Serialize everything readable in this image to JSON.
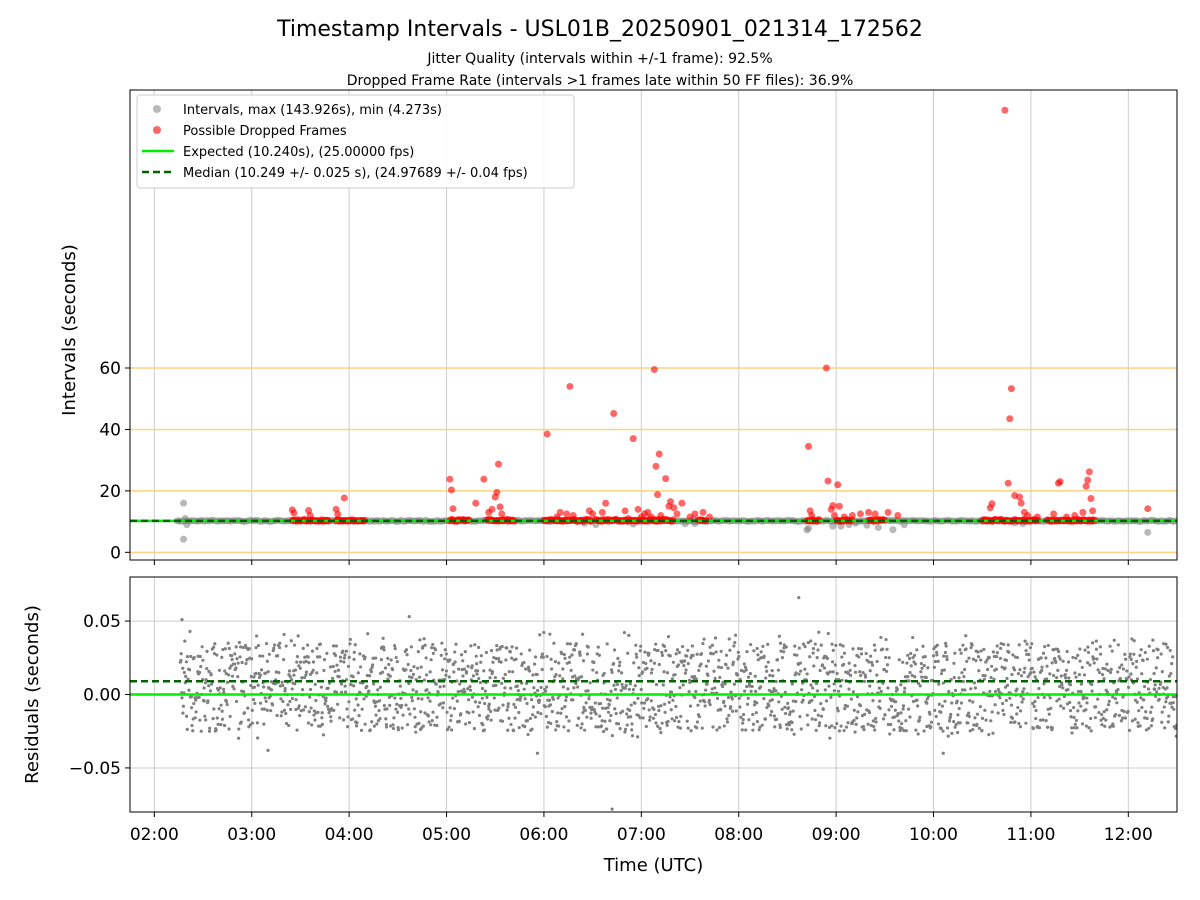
{
  "title": "Timestamp Intervals - USL01B_20250901_021314_172562",
  "subtitle1": "Jitter Quality (intervals within +/-1 frame): 92.5%",
  "subtitle2": "Dropped Frame Rate (intervals >1 frames late within 50 FF files): 36.9%",
  "colors": {
    "intervals": "#808080",
    "dropped": "#ff0000",
    "expected": "#00ee00",
    "median": "#006400",
    "threshold": "#ffd27f",
    "grid": "#cccccc"
  },
  "chart_data": [
    {
      "type": "scatter",
      "ylabel": "Intervals (seconds)",
      "xlim": [
        "01:45",
        "12:30"
      ],
      "ylim": [
        -2.5,
        150.5
      ],
      "yticks": [
        0,
        20,
        40,
        60
      ],
      "threshold_lines": [
        0,
        20,
        40,
        60
      ],
      "expected_interval": 10.24,
      "median_interval": 10.249,
      "grid": "x",
      "legend_position": "top-left",
      "legend": [
        "Intervals, max (143.926s), min (4.273s)",
        "Possible Dropped Frames",
        "Expected (10.240s), (25.00000 fps)",
        "Median (10.249 +/- 0.025 s), (24.97689 +/- 0.04 fps)"
      ],
      "series": [
        {
          "name": "Intervals, max (143.926s), min (4.273s)",
          "baseline": {
            "from": "02:14",
            "to": "12:30",
            "value": 10.24
          },
          "points": [
            [
              "02:18",
              16.0
            ],
            [
              "02:19",
              11.0
            ],
            [
              "02:20",
              9.0
            ],
            [
              "02:18",
              4.3
            ],
            [
              "06:25",
              9.5
            ],
            [
              "06:32",
              9.0
            ],
            [
              "06:55",
              9.2
            ],
            [
              "07:27",
              9.3
            ],
            [
              "07:32",
              10.9
            ],
            [
              "07:33",
              9.4
            ],
            [
              "07:38",
              10.4
            ],
            [
              "08:42",
              7.3
            ],
            [
              "08:43",
              7.8
            ],
            [
              "08:58",
              8.5
            ],
            [
              "09:03",
              8.5
            ],
            [
              "09:08",
              9.0
            ],
            [
              "09:12",
              9.5
            ],
            [
              "09:19",
              8.8
            ],
            [
              "09:26",
              8.1
            ],
            [
              "09:35",
              7.4
            ],
            [
              "09:42",
              9.0
            ],
            [
              "10:50",
              9.6
            ],
            [
              "10:55",
              9.4
            ],
            [
              "12:12",
              6.5
            ]
          ]
        },
        {
          "name": "Possible Dropped Frames",
          "clusters": [
            [
              "03:25",
              "03:48"
            ],
            [
              "03:52",
              "04:10"
            ],
            [
              "05:02",
              "05:14"
            ],
            [
              "05:25",
              "05:42"
            ],
            [
              "06:00",
              "06:30"
            ],
            [
              "06:32",
              "07:20"
            ],
            [
              "07:35",
              "07:40"
            ],
            [
              "08:42",
              "08:50"
            ],
            [
              "09:00",
              "09:10"
            ],
            [
              "09:20",
              "09:30"
            ],
            [
              "10:30",
              "11:05"
            ],
            [
              "11:10",
              "11:40"
            ]
          ],
          "cluster_value": 10.4,
          "points": [
            [
              "03:25",
              13.8
            ],
            [
              "03:26",
              12.8
            ],
            [
              "03:35",
              13.6
            ],
            [
              "03:36",
              12.0
            ],
            [
              "03:52",
              14.0
            ],
            [
              "03:53",
              12.4
            ],
            [
              "03:57",
              17.7
            ],
            [
              "05:02",
              23.8
            ],
            [
              "05:03",
              20.3
            ],
            [
              "05:04",
              14.2
            ],
            [
              "05:18",
              16.0
            ],
            [
              "05:23",
              23.8
            ],
            [
              "05:26",
              13.0
            ],
            [
              "05:28",
              14.0
            ],
            [
              "05:30",
              18.0
            ],
            [
              "05:31",
              19.5
            ],
            [
              "05:32",
              28.7
            ],
            [
              "05:33",
              14.8
            ],
            [
              "05:34",
              12.5
            ],
            [
              "06:02",
              38.5
            ],
            [
              "06:08",
              11.5
            ],
            [
              "06:10",
              13.0
            ],
            [
              "06:14",
              12.5
            ],
            [
              "06:16",
              54.0
            ],
            [
              "06:18",
              12.0
            ],
            [
              "06:28",
              13.5
            ],
            [
              "06:30",
              12.5
            ],
            [
              "06:36",
              13.0
            ],
            [
              "06:38",
              16.0
            ],
            [
              "06:43",
              45.2
            ],
            [
              "06:50",
              13.5
            ],
            [
              "06:52",
              11.0
            ],
            [
              "06:55",
              37.0
            ],
            [
              "06:58",
              14.0
            ],
            [
              "07:00",
              11.5
            ],
            [
              "07:02",
              12.5
            ],
            [
              "07:04",
              13.0
            ],
            [
              "07:06",
              11.5
            ],
            [
              "07:08",
              59.5
            ],
            [
              "07:09",
              28.0
            ],
            [
              "07:10",
              18.8
            ],
            [
              "07:11",
              32.0
            ],
            [
              "07:12",
              12.0
            ],
            [
              "07:15",
              24.0
            ],
            [
              "07:17",
              15.0
            ],
            [
              "07:18",
              16.5
            ],
            [
              "07:20",
              14.5
            ],
            [
              "07:22",
              12.5
            ],
            [
              "07:25",
              16.0
            ],
            [
              "07:30",
              11.5
            ],
            [
              "07:33",
              12.5
            ],
            [
              "07:38",
              13.0
            ],
            [
              "07:42",
              11.5
            ],
            [
              "08:43",
              34.5
            ],
            [
              "08:44",
              13.5
            ],
            [
              "08:45",
              12.0
            ],
            [
              "08:54",
              60.0
            ],
            [
              "08:55",
              23.2
            ],
            [
              "08:57",
              14.0
            ],
            [
              "08:58",
              15.2
            ],
            [
              "08:59",
              12.0
            ],
            [
              "09:01",
              22.0
            ],
            [
              "09:02",
              15.0
            ],
            [
              "09:05",
              11.5
            ],
            [
              "09:10",
              12.0
            ],
            [
              "09:15",
              12.5
            ],
            [
              "09:20",
              13.0
            ],
            [
              "09:24",
              12.5
            ],
            [
              "09:32",
              13.0
            ],
            [
              "09:38",
              12.0
            ],
            [
              "10:35",
              14.5
            ],
            [
              "10:36",
              15.8
            ],
            [
              "10:44",
              143.9
            ],
            [
              "10:46",
              22.5
            ],
            [
              "10:47",
              43.5
            ],
            [
              "10:48",
              53.3
            ],
            [
              "10:50",
              18.5
            ],
            [
              "10:53",
              18.0
            ],
            [
              "10:54",
              16.0
            ],
            [
              "10:56",
              13.0
            ],
            [
              "10:58",
              12.0
            ],
            [
              "11:04",
              11.5
            ],
            [
              "11:14",
              12.5
            ],
            [
              "11:17",
              22.5
            ],
            [
              "11:18",
              23.0
            ],
            [
              "11:22",
              11.5
            ],
            [
              "11:27",
              12.0
            ],
            [
              "11:32",
              13.0
            ],
            [
              "11:34",
              21.5
            ],
            [
              "11:35",
              23.5
            ],
            [
              "11:36",
              26.2
            ],
            [
              "11:37",
              17.5
            ],
            [
              "11:38",
              13.5
            ],
            [
              "12:12",
              14.2
            ]
          ]
        },
        {
          "name": "Expected (10.240s), (25.00000 fps)",
          "value": 10.24
        },
        {
          "name": "Median (10.249 +/- 0.025 s), (24.97689 +/- 0.04 fps)",
          "value": 10.249
        }
      ]
    },
    {
      "type": "scatter",
      "xlabel": "Time (UTC)",
      "ylabel": "Residuals (seconds)",
      "xlim": [
        "01:45",
        "12:30"
      ],
      "ylim": [
        -0.08,
        0.08
      ],
      "yticks": [
        -0.05,
        0.0,
        0.05
      ],
      "ytick_labels": [
        "−0.05",
        "0.00",
        "0.05"
      ],
      "xticks": [
        "02:00",
        "03:00",
        "04:00",
        "05:00",
        "06:00",
        "07:00",
        "08:00",
        "09:00",
        "10:00",
        "11:00",
        "12:00"
      ],
      "expected_residual": 0.0,
      "median_residual": 0.009,
      "grid": "both",
      "residual_range": {
        "from": "02:16",
        "to": "12:30",
        "min": -0.03,
        "max": 0.043
      },
      "outliers": [
        [
          "02:17",
          0.051
        ],
        [
          "04:37",
          0.053
        ],
        [
          "08:37",
          0.066
        ],
        [
          "06:42",
          -0.078
        ],
        [
          "05:56",
          -0.04
        ],
        [
          "10:06",
          -0.04
        ],
        [
          "03:10",
          -0.038
        ]
      ]
    }
  ]
}
